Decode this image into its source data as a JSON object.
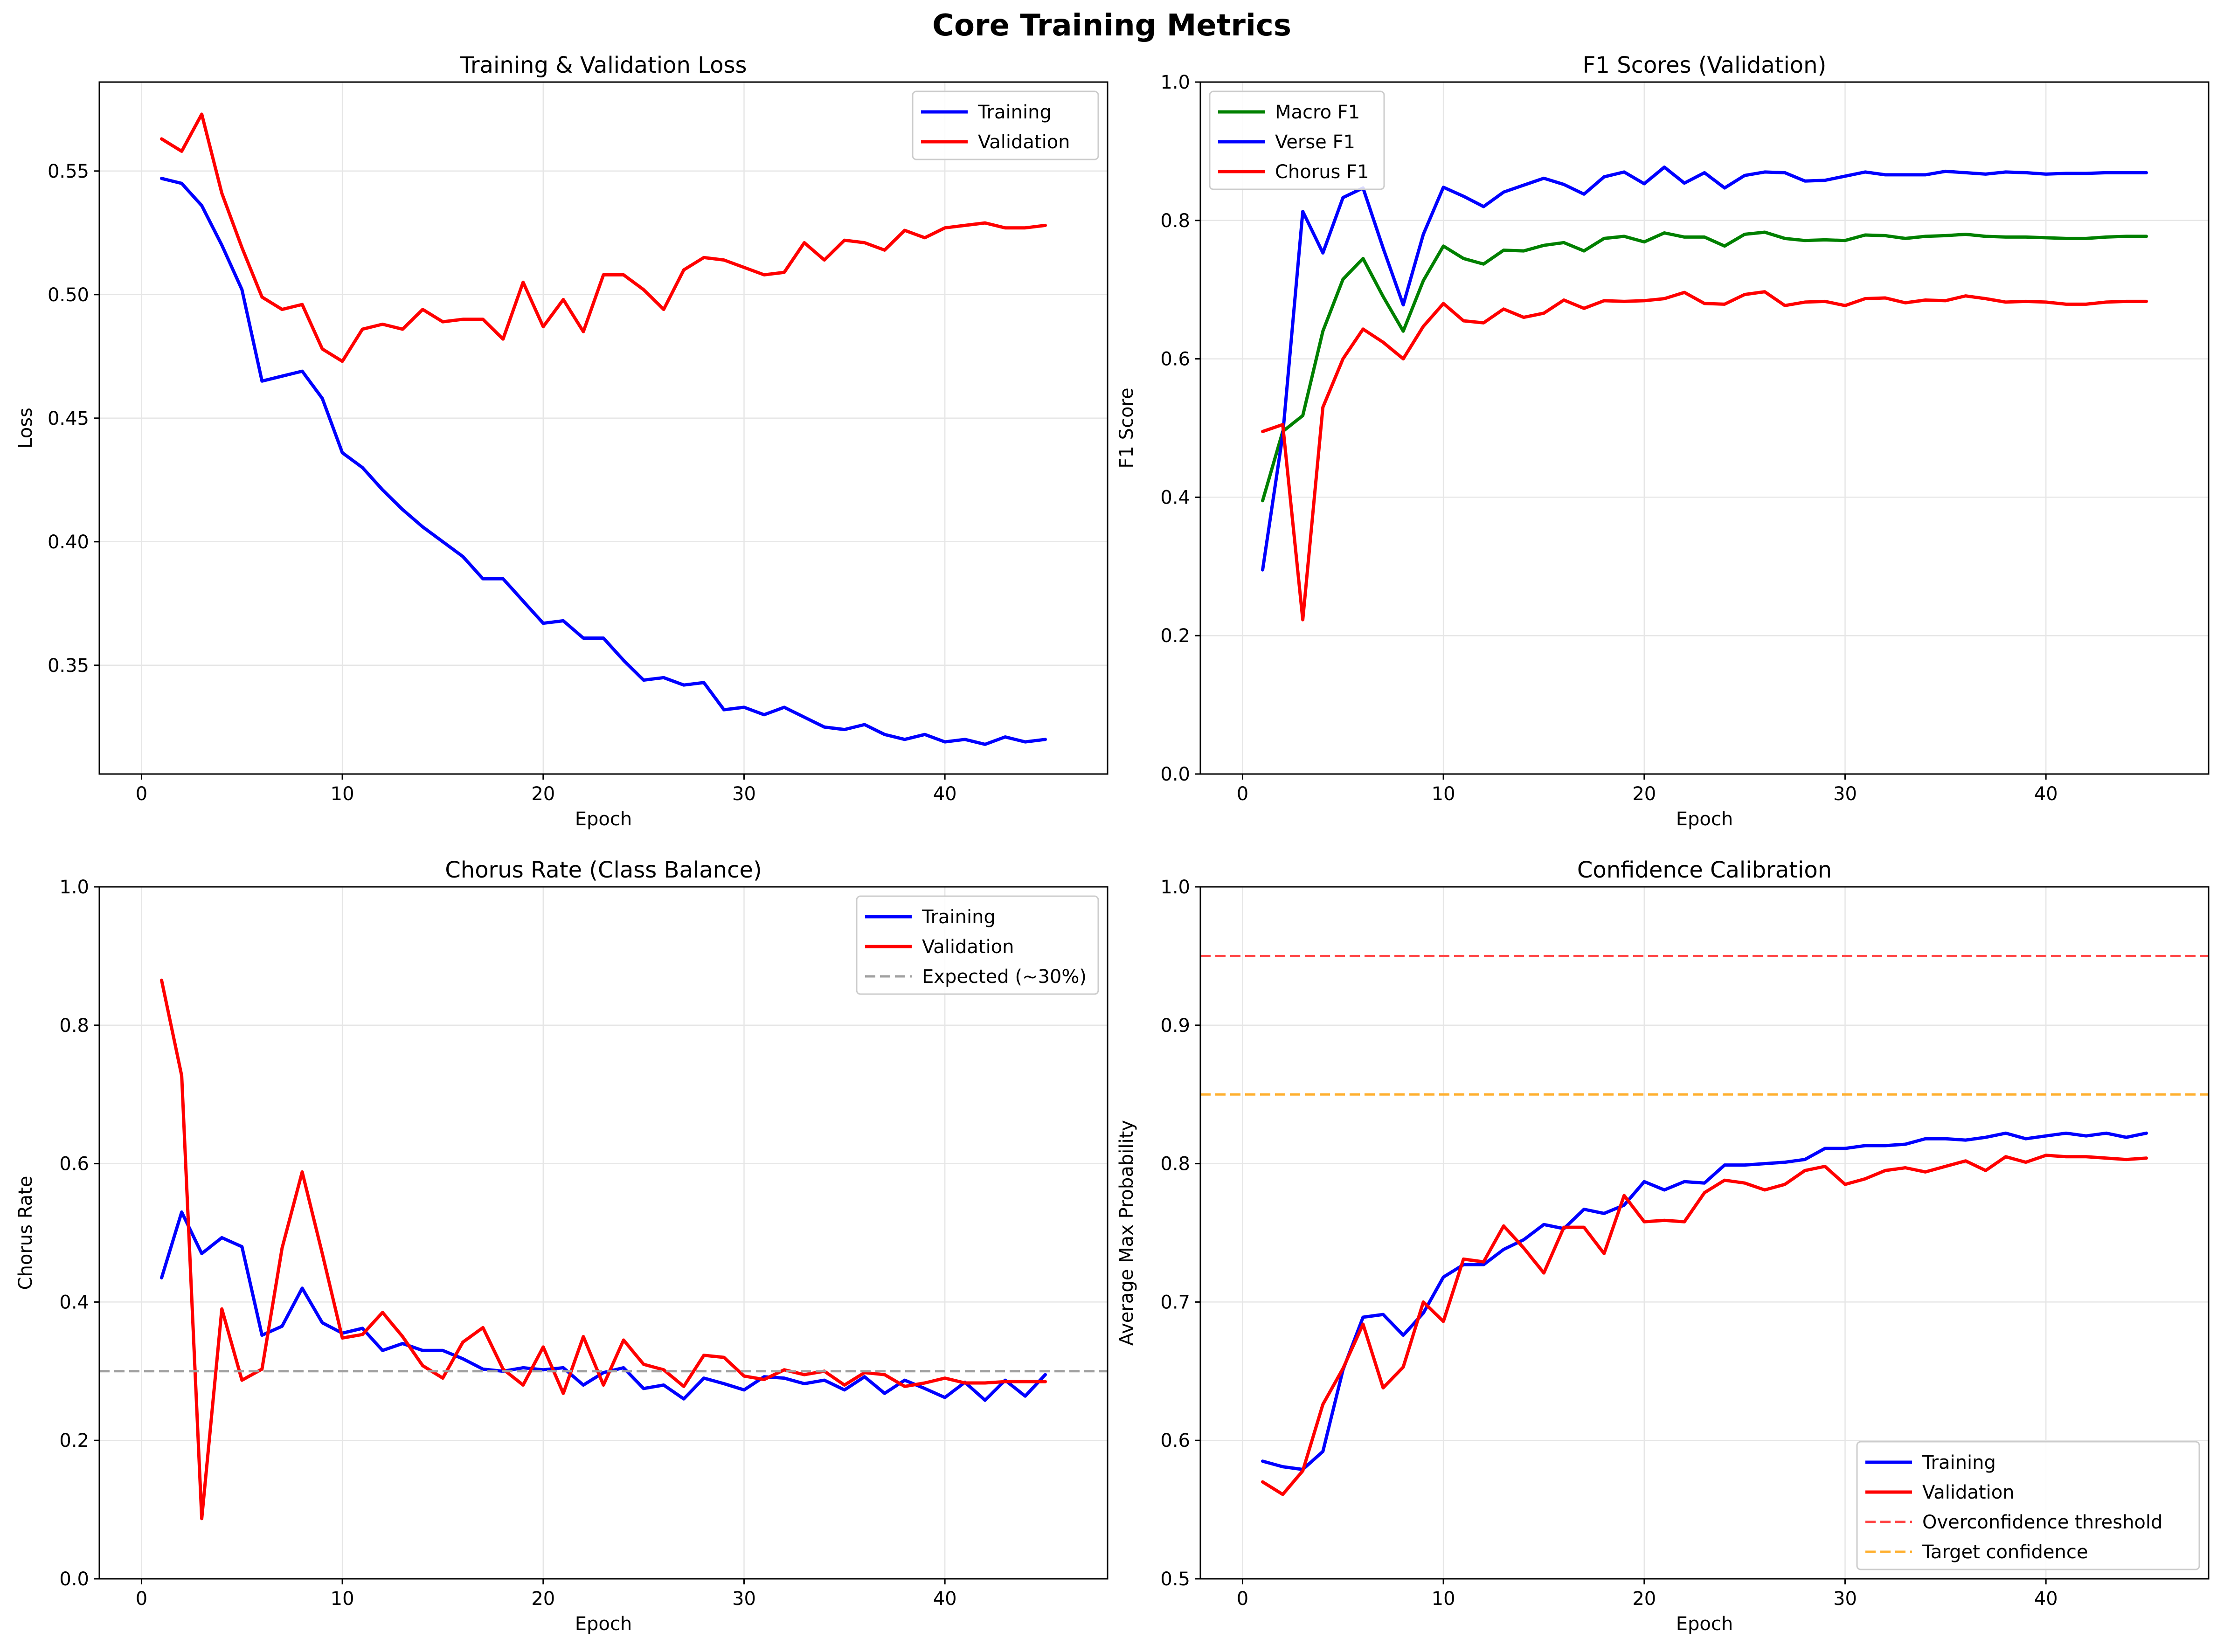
{
  "figure": {
    "suptitle": "Core Training Metrics"
  },
  "colors": {
    "training": "#0000ff",
    "validation": "#ff0000",
    "macro": "#008000",
    "expected": "#a0a0a0",
    "overconfidence": "#ff4444",
    "target": "#ffb030"
  },
  "chart_data": [
    {
      "type": "line",
      "title": "Training & Validation Loss",
      "xlabel": "Epoch",
      "ylabel": "Loss",
      "xlim": [
        -2.1,
        48.1
      ],
      "ylim": [
        0.306,
        0.586
      ],
      "xticks": [
        0,
        10,
        20,
        30,
        40
      ],
      "yticks": [
        0.35,
        0.4,
        0.45,
        0.5,
        0.55
      ],
      "yticklabels": [
        "0.35",
        "0.40",
        "0.45",
        "0.50",
        "0.55"
      ],
      "grid": true,
      "legend": "top-right",
      "x": [
        1,
        2,
        3,
        4,
        5,
        6,
        7,
        8,
        9,
        10,
        11,
        12,
        13,
        14,
        15,
        16,
        17,
        18,
        19,
        20,
        21,
        22,
        23,
        24,
        25,
        26,
        27,
        28,
        29,
        30,
        31,
        32,
        33,
        34,
        35,
        36,
        37,
        38,
        39,
        40,
        41,
        42,
        43,
        44,
        45
      ],
      "series": [
        {
          "name": "Training",
          "color": "#0000ff",
          "dash": "solid",
          "values": [
            0.547,
            0.545,
            0.536,
            0.52,
            0.502,
            0.465,
            0.467,
            0.469,
            0.458,
            0.436,
            0.43,
            0.421,
            0.413,
            0.406,
            0.4,
            0.394,
            0.385,
            0.385,
            0.376,
            0.367,
            0.368,
            0.361,
            0.361,
            0.352,
            0.344,
            0.345,
            0.342,
            0.343,
            0.332,
            0.333,
            0.33,
            0.333,
            0.329,
            0.325,
            0.324,
            0.326,
            0.322,
            0.32,
            0.322,
            0.319,
            0.32,
            0.318,
            0.321,
            0.319,
            0.32
          ]
        },
        {
          "name": "Validation",
          "color": "#ff0000",
          "dash": "solid",
          "values": [
            0.563,
            0.558,
            0.573,
            0.541,
            0.519,
            0.499,
            0.494,
            0.496,
            0.478,
            0.473,
            0.486,
            0.488,
            0.486,
            0.494,
            0.489,
            0.49,
            0.49,
            0.482,
            0.505,
            0.487,
            0.498,
            0.485,
            0.508,
            0.508,
            0.502,
            0.494,
            0.51,
            0.515,
            0.514,
            0.511,
            0.508,
            0.509,
            0.521,
            0.514,
            0.522,
            0.521,
            0.518,
            0.526,
            0.523,
            0.527,
            0.528,
            0.529,
            0.527,
            0.527,
            0.528
          ]
        }
      ]
    },
    {
      "type": "line",
      "title": "F1 Scores (Validation)",
      "xlabel": "Epoch",
      "ylabel": "F1 Score",
      "xlim": [
        -2.1,
        48.1
      ],
      "ylim": [
        0.0,
        1.0
      ],
      "xticks": [
        0,
        10,
        20,
        30,
        40
      ],
      "yticks": [
        0.0,
        0.2,
        0.4,
        0.6,
        0.8,
        1.0
      ],
      "yticklabels": [
        "0.0",
        "0.2",
        "0.4",
        "0.6",
        "0.8",
        "1.0"
      ],
      "grid": true,
      "legend": "top-left",
      "x": [
        1,
        2,
        3,
        4,
        5,
        6,
        7,
        8,
        9,
        10,
        11,
        12,
        13,
        14,
        15,
        16,
        17,
        18,
        19,
        20,
        21,
        22,
        23,
        24,
        25,
        26,
        27,
        28,
        29,
        30,
        31,
        32,
        33,
        34,
        35,
        36,
        37,
        38,
        39,
        40,
        41,
        42,
        43,
        44,
        45
      ],
      "series": [
        {
          "name": "Macro F1",
          "color": "#008000",
          "dash": "solid",
          "values": [
            0.395,
            0.495,
            0.518,
            0.64,
            0.715,
            0.745,
            0.69,
            0.64,
            0.713,
            0.763,
            0.745,
            0.737,
            0.757,
            0.756,
            0.764,
            0.768,
            0.756,
            0.774,
            0.777,
            0.769,
            0.782,
            0.776,
            0.776,
            0.763,
            0.78,
            0.783,
            0.774,
            0.771,
            0.772,
            0.771,
            0.779,
            0.778,
            0.774,
            0.777,
            0.778,
            0.78,
            0.777,
            0.776,
            0.776,
            0.775,
            0.774,
            0.774,
            0.776,
            0.777,
            0.777
          ]
        },
        {
          "name": "Verse F1",
          "color": "#0000ff",
          "dash": "solid",
          "values": [
            0.295,
            0.49,
            0.813,
            0.753,
            0.833,
            0.847,
            0.76,
            0.678,
            0.78,
            0.848,
            0.835,
            0.82,
            0.841,
            0.851,
            0.861,
            0.852,
            0.838,
            0.863,
            0.87,
            0.853,
            0.877,
            0.854,
            0.869,
            0.847,
            0.865,
            0.87,
            0.869,
            0.857,
            0.858,
            0.864,
            0.87,
            0.866,
            0.866,
            0.866,
            0.871,
            0.869,
            0.867,
            0.87,
            0.869,
            0.867,
            0.868,
            0.868,
            0.869,
            0.869,
            0.869
          ]
        },
        {
          "name": "Chorus F1",
          "color": "#ff0000",
          "dash": "solid",
          "values": [
            0.495,
            0.505,
            0.223,
            0.53,
            0.6,
            0.643,
            0.624,
            0.6,
            0.647,
            0.68,
            0.655,
            0.652,
            0.672,
            0.66,
            0.666,
            0.685,
            0.673,
            0.684,
            0.683,
            0.684,
            0.687,
            0.696,
            0.68,
            0.679,
            0.693,
            0.697,
            0.677,
            0.682,
            0.683,
            0.677,
            0.687,
            0.688,
            0.681,
            0.685,
            0.684,
            0.691,
            0.687,
            0.682,
            0.683,
            0.682,
            0.679,
            0.679,
            0.682,
            0.683,
            0.683
          ]
        }
      ]
    },
    {
      "type": "line",
      "title": "Chorus Rate (Class Balance)",
      "xlabel": "Epoch",
      "ylabel": "Chorus Rate",
      "xlim": [
        -2.1,
        48.1
      ],
      "ylim": [
        0.0,
        1.0
      ],
      "xticks": [
        0,
        10,
        20,
        30,
        40
      ],
      "yticks": [
        0.0,
        0.2,
        0.4,
        0.6,
        0.8,
        1.0
      ],
      "yticklabels": [
        "0.0",
        "0.2",
        "0.4",
        "0.6",
        "0.8",
        "1.0"
      ],
      "grid": true,
      "legend": "top-right",
      "x": [
        1,
        2,
        3,
        4,
        5,
        6,
        7,
        8,
        9,
        10,
        11,
        12,
        13,
        14,
        15,
        16,
        17,
        18,
        19,
        20,
        21,
        22,
        23,
        24,
        25,
        26,
        27,
        28,
        29,
        30,
        31,
        32,
        33,
        34,
        35,
        36,
        37,
        38,
        39,
        40,
        41,
        42,
        43,
        44,
        45
      ],
      "series": [
        {
          "name": "Training",
          "color": "#0000ff",
          "dash": "solid",
          "values": [
            0.435,
            0.53,
            0.47,
            0.493,
            0.48,
            0.352,
            0.365,
            0.42,
            0.37,
            0.355,
            0.362,
            0.33,
            0.34,
            0.33,
            0.33,
            0.318,
            0.303,
            0.3,
            0.305,
            0.302,
            0.305,
            0.28,
            0.298,
            0.305,
            0.275,
            0.28,
            0.26,
            0.29,
            0.282,
            0.273,
            0.292,
            0.29,
            0.282,
            0.287,
            0.273,
            0.292,
            0.268,
            0.287,
            0.275,
            0.262,
            0.284,
            0.258,
            0.287,
            0.264,
            0.295
          ]
        },
        {
          "name": "Validation",
          "color": "#ff0000",
          "dash": "solid",
          "values": [
            0.865,
            0.727,
            0.087,
            0.39,
            0.287,
            0.303,
            0.478,
            0.588,
            0.47,
            0.348,
            0.353,
            0.385,
            0.35,
            0.308,
            0.29,
            0.342,
            0.363,
            0.303,
            0.28,
            0.335,
            0.268,
            0.35,
            0.28,
            0.345,
            0.31,
            0.302,
            0.278,
            0.323,
            0.32,
            0.293,
            0.288,
            0.302,
            0.295,
            0.3,
            0.28,
            0.298,
            0.295,
            0.278,
            0.283,
            0.29,
            0.283,
            0.283,
            0.285,
            0.285,
            0.285
          ]
        },
        {
          "name": "Expected (~30%)",
          "color": "#a0a0a0",
          "dash": "dashed",
          "hline": 0.3
        }
      ]
    },
    {
      "type": "line",
      "title": "Confidence Calibration",
      "xlabel": "Epoch",
      "ylabel": "Average Max Probability",
      "xlim": [
        -2.1,
        48.1
      ],
      "ylim": [
        0.5,
        1.0
      ],
      "xticks": [
        0,
        10,
        20,
        30,
        40
      ],
      "yticks": [
        0.5,
        0.6,
        0.7,
        0.8,
        0.9,
        1.0
      ],
      "yticklabels": [
        "0.5",
        "0.6",
        "0.7",
        "0.8",
        "0.9",
        "1.0"
      ],
      "grid": true,
      "legend": "bottom-right",
      "x": [
        1,
        2,
        3,
        4,
        5,
        6,
        7,
        8,
        9,
        10,
        11,
        12,
        13,
        14,
        15,
        16,
        17,
        18,
        19,
        20,
        21,
        22,
        23,
        24,
        25,
        26,
        27,
        28,
        29,
        30,
        31,
        32,
        33,
        34,
        35,
        36,
        37,
        38,
        39,
        40,
        41,
        42,
        43,
        44,
        45
      ],
      "series": [
        {
          "name": "Training",
          "color": "#0000ff",
          "dash": "solid",
          "values": [
            0.585,
            0.581,
            0.579,
            0.592,
            0.651,
            0.689,
            0.691,
            0.676,
            0.692,
            0.718,
            0.727,
            0.727,
            0.738,
            0.745,
            0.756,
            0.753,
            0.767,
            0.764,
            0.77,
            0.787,
            0.781,
            0.787,
            0.786,
            0.799,
            0.799,
            0.8,
            0.801,
            0.803,
            0.811,
            0.811,
            0.813,
            0.813,
            0.814,
            0.818,
            0.818,
            0.817,
            0.819,
            0.822,
            0.818,
            0.82,
            0.822,
            0.82,
            0.822,
            0.819,
            0.822
          ]
        },
        {
          "name": "Validation",
          "color": "#ff0000",
          "dash": "solid",
          "values": [
            0.57,
            0.561,
            0.578,
            0.626,
            0.652,
            0.684,
            0.638,
            0.653,
            0.7,
            0.686,
            0.731,
            0.729,
            0.755,
            0.739,
            0.721,
            0.754,
            0.754,
            0.735,
            0.777,
            0.758,
            0.759,
            0.758,
            0.779,
            0.788,
            0.786,
            0.781,
            0.785,
            0.795,
            0.798,
            0.785,
            0.789,
            0.795,
            0.797,
            0.794,
            0.798,
            0.802,
            0.795,
            0.805,
            0.801,
            0.806,
            0.805,
            0.805,
            0.804,
            0.803,
            0.804
          ]
        },
        {
          "name": "Overconfidence threshold",
          "color": "#ff4444",
          "dash": "dashed",
          "hline": 0.95
        },
        {
          "name": "Target confidence",
          "color": "#ffb030",
          "dash": "dashed",
          "hline": 0.85
        }
      ]
    }
  ]
}
